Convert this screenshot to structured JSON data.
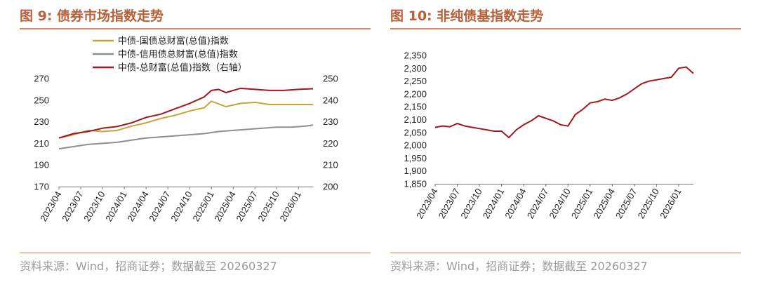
{
  "figures": [
    {
      "title": "图 9:  债券市场指数走势",
      "source": "资料来源：Wind，招商证券；数据截至 20260327"
    },
    {
      "title": "图 10:  非纯债基指数走势",
      "source": "资料来源：Wind，招商证券；数据截至 20260327"
    }
  ],
  "colors": {
    "title": "#b8603a",
    "rule": "#c9886a",
    "gold": "#c9a238",
    "gray": "#8e8e8e",
    "red": "#a3161b"
  },
  "chart_data": [
    {
      "type": "line",
      "x_tick_labels": [
        "2023/04",
        "2023/07",
        "2023/10",
        "2024/01",
        "2024/04",
        "2024/07",
        "2024/10",
        "2025/01",
        "2025/04",
        "2025/07",
        "2025/10",
        "2026/01"
      ],
      "x_range": [
        "2023/04",
        "2026/03"
      ],
      "ylim": [
        170,
        270
      ],
      "yticks": [
        170,
        190,
        210,
        230,
        250,
        270
      ],
      "y2lim": [
        200,
        250
      ],
      "y2ticks": [
        200,
        210,
        220,
        230,
        240,
        250
      ],
      "legend_position": "top-left",
      "grid": false,
      "series": [
        {
          "name": "中债-国债总财富(总值)指数",
          "axis": "left",
          "color": "#c9a238",
          "x": [
            "2023/04",
            "2023/06",
            "2023/08",
            "2023/10",
            "2023/12",
            "2024/02",
            "2024/04",
            "2024/06",
            "2024/08",
            "2024/10",
            "2024/12",
            "2025/01",
            "2025/03",
            "2025/05",
            "2025/07",
            "2025/09",
            "2025/11",
            "2026/01",
            "2026/03"
          ],
          "values": [
            215,
            218,
            222,
            221,
            222,
            226,
            229,
            233,
            236,
            240,
            243,
            249,
            244,
            247,
            248,
            246,
            246,
            246,
            246
          ]
        },
        {
          "name": "中债-信用债总财富(总值)指数",
          "axis": "left",
          "color": "#8e8e8e",
          "x": [
            "2023/04",
            "2023/06",
            "2023/08",
            "2023/10",
            "2023/12",
            "2024/02",
            "2024/04",
            "2024/06",
            "2024/08",
            "2024/10",
            "2024/12",
            "2025/02",
            "2025/04",
            "2025/06",
            "2025/08",
            "2025/10",
            "2025/12",
            "2026/02",
            "2026/03"
          ],
          "values": [
            205,
            207,
            209,
            210,
            211,
            213,
            215,
            216,
            217,
            218,
            219,
            221,
            222,
            223,
            224,
            225,
            225,
            226,
            227
          ]
        },
        {
          "name": "中债-总财富(总值)指数（右轴）",
          "axis": "right",
          "color": "#a3161b",
          "x": [
            "2023/04",
            "2023/06",
            "2023/08",
            "2023/10",
            "2023/12",
            "2024/02",
            "2024/04",
            "2024/06",
            "2024/08",
            "2024/10",
            "2024/12",
            "2025/01",
            "2025/02",
            "2025/03",
            "2025/05",
            "2025/07",
            "2025/09",
            "2025/11",
            "2026/01",
            "2026/03"
          ],
          "values": [
            222.5,
            224.5,
            225.5,
            227.0,
            227.8,
            229.5,
            232.0,
            233.5,
            236.0,
            238.5,
            241.5,
            244.5,
            245.0,
            243.5,
            245.5,
            245.0,
            244.5,
            244.5,
            245.0,
            245.3
          ]
        }
      ]
    },
    {
      "type": "line",
      "x_tick_labels": [
        "2023/04",
        "2023/07",
        "2023/10",
        "2024/01",
        "2024/04",
        "2024/07",
        "2024/10",
        "2025/01",
        "2025/04",
        "2025/07",
        "2025/10",
        "2026/01"
      ],
      "x_range": [
        "2023/04",
        "2026/03"
      ],
      "ylim": [
        1850,
        2350
      ],
      "yticks": [
        1850,
        1900,
        1950,
        2000,
        2050,
        2100,
        2150,
        2200,
        2250,
        2300,
        2350
      ],
      "y_tick_labels": [
        "1,850",
        "1,900",
        "1,950",
        "2,000",
        "2,050",
        "2,100",
        "2,150",
        "2,200",
        "2,250",
        "2,300",
        "2,350"
      ],
      "grid": false,
      "series": [
        {
          "color": "#a3161b",
          "x": [
            "2023/04",
            "2023/05",
            "2023/06",
            "2023/07",
            "2023/08",
            "2023/09",
            "2023/10",
            "2023/11",
            "2023/12",
            "2024/01",
            "2024/02",
            "2024/03",
            "2024/04",
            "2024/05",
            "2024/06",
            "2024/07",
            "2024/08",
            "2024/09",
            "2024/10",
            "2024/11",
            "2024/12",
            "2025/01",
            "2025/02",
            "2025/03",
            "2025/04",
            "2025/05",
            "2025/06",
            "2025/07",
            "2025/08",
            "2025/09",
            "2025/10",
            "2025/11",
            "2025/12",
            "2026/01",
            "2026/02",
            "2026/03"
          ],
          "values": [
            2070,
            2075,
            2072,
            2085,
            2075,
            2070,
            2065,
            2060,
            2055,
            2055,
            2030,
            2060,
            2080,
            2095,
            2115,
            2105,
            2095,
            2080,
            2075,
            2120,
            2140,
            2165,
            2170,
            2180,
            2175,
            2185,
            2200,
            2220,
            2240,
            2250,
            2255,
            2260,
            2265,
            2300,
            2305,
            2280
          ]
        }
      ]
    }
  ]
}
